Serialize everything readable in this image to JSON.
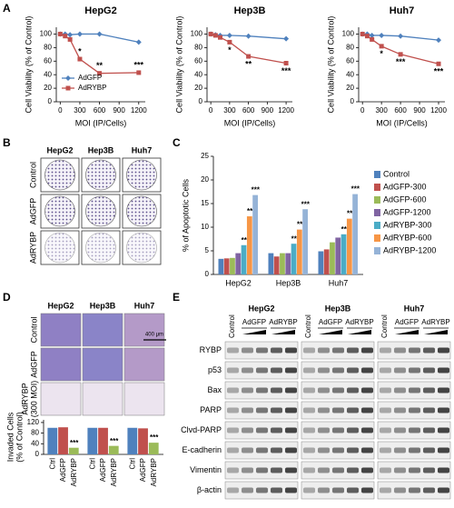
{
  "panel_labels": [
    "A",
    "B",
    "C",
    "D",
    "E"
  ],
  "chart_data": [
    {
      "type": "line",
      "title": "HepG2",
      "xlabel": "MOI (IP/Cells)",
      "ylabel": "Cell Viability (% of Control)",
      "x": [
        0,
        75,
        150,
        300,
        600,
        1200
      ],
      "xlim": [
        -60,
        1300
      ],
      "xticks": [
        0,
        300,
        600,
        900,
        1200
      ],
      "ylim": [
        0,
        110
      ],
      "yticks": [
        0,
        20,
        40,
        60,
        80,
        100
      ],
      "legend": "lower left",
      "annotation_position": "above",
      "series": [
        {
          "name": "AdGFP",
          "color": "#4f81bd",
          "marker": "diamond",
          "values": [
            100,
            100,
            99,
            100,
            100,
            88
          ]
        },
        {
          "name": "AdRYBP",
          "color": "#c0504d",
          "marker": "square",
          "values": [
            100,
            97,
            92,
            63,
            42,
            43
          ],
          "annotations": [
            null,
            null,
            null,
            "*",
            "**",
            "***"
          ]
        }
      ]
    },
    {
      "type": "line",
      "title": "Hep3B",
      "xlabel": "MOI (IP/Cells)",
      "ylabel": "Cell Viability (% of Control)",
      "x": [
        0,
        75,
        150,
        300,
        600,
        1200
      ],
      "xlim": [
        -60,
        1300
      ],
      "xticks": [
        0,
        300,
        600,
        900,
        1200
      ],
      "ylim": [
        0,
        110
      ],
      "yticks": [
        0,
        20,
        40,
        60,
        80,
        100
      ],
      "annotation_position": "below",
      "series": [
        {
          "color": "#4f81bd",
          "marker": "diamond",
          "values": [
            100,
            99,
            98,
            98,
            97,
            93
          ]
        },
        {
          "color": "#c0504d",
          "marker": "square",
          "values": [
            100,
            98,
            95,
            88,
            67,
            57
          ],
          "annotations": [
            null,
            null,
            null,
            "*",
            "**",
            "***"
          ]
        }
      ]
    },
    {
      "type": "line",
      "title": "Huh7",
      "xlabel": "MOI (IP/Cells)",
      "ylabel": "Cell Viability (% of Control)",
      "x": [
        0,
        75,
        150,
        300,
        600,
        1200
      ],
      "xlim": [
        -60,
        1300
      ],
      "xticks": [
        0,
        300,
        600,
        900,
        1200
      ],
      "ylim": [
        0,
        110
      ],
      "yticks": [
        0,
        20,
        40,
        60,
        80,
        100
      ],
      "annotation_position": "below",
      "series": [
        {
          "color": "#4f81bd",
          "marker": "diamond",
          "values": [
            100,
            100,
            98,
            98,
            97,
            91
          ]
        },
        {
          "color": "#c0504d",
          "marker": "square",
          "values": [
            100,
            97,
            92,
            82,
            70,
            56
          ],
          "annotations": [
            null,
            null,
            null,
            "*",
            "***",
            "***"
          ]
        }
      ]
    },
    {
      "type": "bar",
      "ylabel": "% of Apoptotic Cells",
      "categories": [
        "HepG2",
        "Hep3B",
        "Huh7"
      ],
      "ylim": [
        0,
        25
      ],
      "yticks": [
        0,
        5,
        10,
        15,
        20,
        25
      ],
      "legend": "right",
      "series": [
        {
          "name": "Control",
          "color": "#4f81bd",
          "values": [
            3.3,
            4.5,
            4.9
          ]
        },
        {
          "name": "AdGFP-300",
          "color": "#c0504d",
          "values": [
            3.4,
            3.8,
            5.3
          ]
        },
        {
          "name": "AdGFP-600",
          "color": "#9bbb59",
          "values": [
            3.5,
            4.5,
            6.8
          ]
        },
        {
          "name": "AdGFP-1200",
          "color": "#8064a2",
          "values": [
            4.5,
            4.5,
            7.8
          ]
        },
        {
          "name": "AdRYBP-300",
          "color": "#4bacc6",
          "values": [
            6.2,
            6.5,
            8.5
          ],
          "annotations": [
            "**",
            "**",
            "**"
          ]
        },
        {
          "name": "AdRYBP-600",
          "color": "#f79646",
          "values": [
            12.3,
            9.5,
            11.8
          ],
          "annotations": [
            "**",
            "**",
            "**"
          ]
        },
        {
          "name": "AdRYBP-1200",
          "color": "#95b3d7",
          "values": [
            16.8,
            13.8,
            17
          ],
          "annotations": [
            "***",
            "***",
            "***"
          ]
        }
      ]
    },
    {
      "type": "bar",
      "ylabel": [
        "Invaded Cells",
        "(% of Control)"
      ],
      "categories": [
        "HepG2",
        "Hep3B",
        "Huh7"
      ],
      "ylim": [
        0,
        130
      ],
      "yticks": [
        0,
        40,
        80,
        120
      ],
      "series": [
        {
          "name": "Ctrl",
          "color": "#4f81bd",
          "values": [
            100,
            100,
            100
          ]
        },
        {
          "name": "AdGFP",
          "color": "#c0504d",
          "values": [
            102,
            100,
            98
          ]
        },
        {
          "name": "AdRYBP",
          "color": "#9bbb59",
          "values": [
            25,
            32,
            44
          ],
          "annotations": [
            "***",
            "***",
            "***"
          ]
        }
      ]
    }
  ],
  "colony_assay": {
    "cell_lines": [
      "HepG2",
      "Hep3B",
      "Huh7"
    ],
    "rows": [
      "Control",
      "AdGFP",
      "AdRYBP"
    ]
  },
  "invasion_assay": {
    "rows": [
      [
        "Control"
      ],
      [
        "AdGFP"
      ],
      [
        "AdRYBP",
        "(300 MOI)"
      ]
    ],
    "scale_bar": "400 μm"
  },
  "western_blot": {
    "cell_lines": [
      "HepG2",
      "Hep3B",
      "Huh7"
    ],
    "treatments": [
      "Control",
      "AdGFP",
      "AdRYBP"
    ],
    "proteins": [
      "RYBP",
      "p53",
      "Bax",
      "PARP",
      "Clvd-PARP",
      "E-cadherin",
      "Vimentin",
      "β-actin"
    ]
  }
}
